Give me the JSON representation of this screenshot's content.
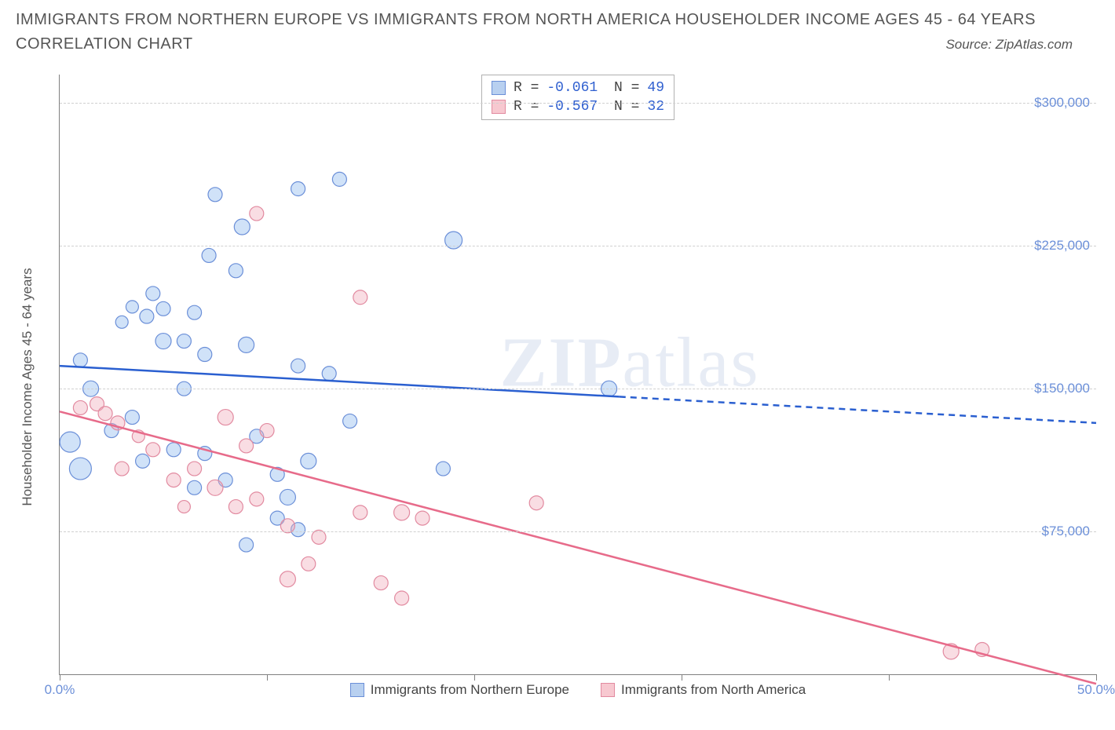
{
  "header": {
    "title": "IMMIGRANTS FROM NORTHERN EUROPE VS IMMIGRANTS FROM NORTH AMERICA HOUSEHOLDER INCOME AGES 45 - 64 YEARS",
    "subtitle": "CORRELATION CHART",
    "source": "Source: ZipAtlas.com"
  },
  "watermark": {
    "part1": "ZIP",
    "part2": "atlas"
  },
  "chart": {
    "type": "scatter",
    "y_label": "Householder Income Ages 45 - 64 years",
    "xlim": [
      0,
      50
    ],
    "ylim": [
      0,
      315000
    ],
    "x_ticks": [
      0,
      10,
      20,
      30,
      40,
      50
    ],
    "x_tick_labels": {
      "0": "0.0%",
      "50": "50.0%"
    },
    "y_gridlines": [
      75000,
      150000,
      225000,
      300000
    ],
    "y_tick_labels": [
      "$75,000",
      "$150,000",
      "$225,000",
      "$300,000"
    ],
    "background_color": "#ffffff",
    "grid_color": "#d0d0d0",
    "axis_color": "#808080",
    "label_color": "#555555",
    "tick_label_color": "#6b8fd8",
    "legend_series": [
      {
        "name": "Immigrants from Northern Europe",
        "fill": "#b8d0f0",
        "stroke": "#6b8fd8"
      },
      {
        "name": "Immigrants from North America",
        "fill": "#f7c8d0",
        "stroke": "#e28aa0"
      }
    ],
    "stats": [
      {
        "series": 0,
        "R": "-0.061",
        "N": "49"
      },
      {
        "series": 1,
        "R": "-0.567",
        "N": "32"
      }
    ],
    "series": [
      {
        "name": "Immigrants from Northern Europe",
        "fill": "rgba(150,190,240,0.45)",
        "stroke": "#6b8fd8",
        "marker_r": 9,
        "trend": {
          "x1": 0,
          "y1": 162000,
          "x2": 50,
          "y2": 132000,
          "solid_until_x": 27,
          "color": "#2a5fd0",
          "width": 2.5
        },
        "points": [
          {
            "x": 7.5,
            "y": 252000,
            "r": 9
          },
          {
            "x": 11.5,
            "y": 255000,
            "r": 9
          },
          {
            "x": 13.5,
            "y": 260000,
            "r": 9
          },
          {
            "x": 7.2,
            "y": 220000,
            "r": 9
          },
          {
            "x": 8.8,
            "y": 235000,
            "r": 10
          },
          {
            "x": 4.5,
            "y": 200000,
            "r": 9
          },
          {
            "x": 3.0,
            "y": 185000,
            "r": 8
          },
          {
            "x": 3.5,
            "y": 193000,
            "r": 8
          },
          {
            "x": 4.2,
            "y": 188000,
            "r": 9
          },
          {
            "x": 5.0,
            "y": 192000,
            "r": 9
          },
          {
            "x": 6.5,
            "y": 190000,
            "r": 9
          },
          {
            "x": 5.0,
            "y": 175000,
            "r": 10
          },
          {
            "x": 6.0,
            "y": 175000,
            "r": 9
          },
          {
            "x": 9.0,
            "y": 173000,
            "r": 10
          },
          {
            "x": 7.0,
            "y": 168000,
            "r": 9
          },
          {
            "x": 1.0,
            "y": 165000,
            "r": 9
          },
          {
            "x": 11.5,
            "y": 162000,
            "r": 9
          },
          {
            "x": 8.5,
            "y": 212000,
            "r": 9
          },
          {
            "x": 1.5,
            "y": 150000,
            "r": 10
          },
          {
            "x": 6.0,
            "y": 150000,
            "r": 9
          },
          {
            "x": 9.0,
            "y": 68000,
            "r": 9
          },
          {
            "x": 0.5,
            "y": 122000,
            "r": 13
          },
          {
            "x": 1.0,
            "y": 108000,
            "r": 14
          },
          {
            "x": 19.0,
            "y": 228000,
            "r": 11
          },
          {
            "x": 26.5,
            "y": 150000,
            "r": 10
          },
          {
            "x": 18.5,
            "y": 108000,
            "r": 9
          },
          {
            "x": 14.0,
            "y": 133000,
            "r": 9
          },
          {
            "x": 12.0,
            "y": 112000,
            "r": 10
          },
          {
            "x": 10.5,
            "y": 105000,
            "r": 9
          },
          {
            "x": 9.5,
            "y": 125000,
            "r": 9
          },
          {
            "x": 11.0,
            "y": 93000,
            "r": 10
          },
          {
            "x": 8.0,
            "y": 102000,
            "r": 9
          },
          {
            "x": 7.0,
            "y": 116000,
            "r": 9
          },
          {
            "x": 5.5,
            "y": 118000,
            "r": 9
          },
          {
            "x": 4.0,
            "y": 112000,
            "r": 9
          },
          {
            "x": 2.5,
            "y": 128000,
            "r": 9
          },
          {
            "x": 3.5,
            "y": 135000,
            "r": 9
          },
          {
            "x": 13.0,
            "y": 158000,
            "r": 9
          },
          {
            "x": 10.5,
            "y": 82000,
            "r": 9
          },
          {
            "x": 11.5,
            "y": 76000,
            "r": 9
          },
          {
            "x": 6.5,
            "y": 98000,
            "r": 9
          }
        ]
      },
      {
        "name": "Immigrants from North America",
        "fill": "rgba(240,170,185,0.40)",
        "stroke": "#e28aa0",
        "marker_r": 9,
        "trend": {
          "x1": 0,
          "y1": 138000,
          "x2": 50,
          "y2": -5000,
          "solid_until_x": 50,
          "color": "#e76b8a",
          "width": 2.5
        },
        "points": [
          {
            "x": 9.5,
            "y": 242000,
            "r": 9
          },
          {
            "x": 14.5,
            "y": 198000,
            "r": 9
          },
          {
            "x": 1.0,
            "y": 140000,
            "r": 9
          },
          {
            "x": 1.8,
            "y": 142000,
            "r": 9
          },
          {
            "x": 2.2,
            "y": 137000,
            "r": 9
          },
          {
            "x": 2.8,
            "y": 132000,
            "r": 9
          },
          {
            "x": 8.0,
            "y": 135000,
            "r": 10
          },
          {
            "x": 4.5,
            "y": 118000,
            "r": 9
          },
          {
            "x": 3.0,
            "y": 108000,
            "r": 9
          },
          {
            "x": 5.5,
            "y": 102000,
            "r": 9
          },
          {
            "x": 6.5,
            "y": 108000,
            "r": 9
          },
          {
            "x": 7.5,
            "y": 98000,
            "r": 10
          },
          {
            "x": 9.0,
            "y": 120000,
            "r": 9
          },
          {
            "x": 10.0,
            "y": 128000,
            "r": 9
          },
          {
            "x": 8.5,
            "y": 88000,
            "r": 9
          },
          {
            "x": 9.5,
            "y": 92000,
            "r": 9
          },
          {
            "x": 11.0,
            "y": 78000,
            "r": 9
          },
          {
            "x": 12.5,
            "y": 72000,
            "r": 9
          },
          {
            "x": 14.5,
            "y": 85000,
            "r": 9
          },
          {
            "x": 16.5,
            "y": 85000,
            "r": 10
          },
          {
            "x": 17.5,
            "y": 82000,
            "r": 9
          },
          {
            "x": 15.5,
            "y": 48000,
            "r": 9
          },
          {
            "x": 16.5,
            "y": 40000,
            "r": 9
          },
          {
            "x": 11.0,
            "y": 50000,
            "r": 10
          },
          {
            "x": 12.0,
            "y": 58000,
            "r": 9
          },
          {
            "x": 23.0,
            "y": 90000,
            "r": 9
          },
          {
            "x": 43.0,
            "y": 12000,
            "r": 10
          },
          {
            "x": 44.5,
            "y": 13000,
            "r": 9
          },
          {
            "x": 3.8,
            "y": 125000,
            "r": 8
          },
          {
            "x": 6.0,
            "y": 88000,
            "r": 8
          }
        ]
      }
    ]
  }
}
